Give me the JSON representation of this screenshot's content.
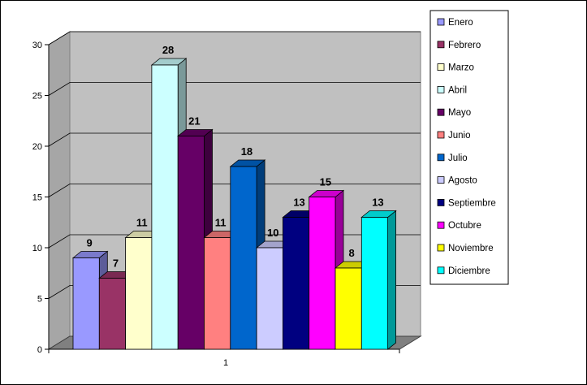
{
  "chart_data": {
    "type": "bar",
    "style": "3d-clustered-column",
    "title": "",
    "xlabel": "",
    "ylabel": "",
    "categories": [
      "1"
    ],
    "ylim": [
      0,
      30
    ],
    "yticks": [
      0,
      5,
      10,
      15,
      20,
      25,
      30
    ],
    "grid": true,
    "legend_position": "right",
    "data_labels": true,
    "series": [
      {
        "name": "Enero",
        "values": [
          9
        ],
        "color": "#9999FF"
      },
      {
        "name": "Febrero",
        "values": [
          7
        ],
        "color": "#993366"
      },
      {
        "name": "Marzo",
        "values": [
          11
        ],
        "color": "#FFFFCC"
      },
      {
        "name": "Abril",
        "values": [
          28
        ],
        "color": "#CCFFFF"
      },
      {
        "name": "Mayo",
        "values": [
          21
        ],
        "color": "#660066"
      },
      {
        "name": "Junio",
        "values": [
          11
        ],
        "color": "#FF8080"
      },
      {
        "name": "Julio",
        "values": [
          18
        ],
        "color": "#0066CC"
      },
      {
        "name": "Agosto",
        "values": [
          10
        ],
        "color": "#CCCCFF"
      },
      {
        "name": "Septiembre",
        "values": [
          13
        ],
        "color": "#000080"
      },
      {
        "name": "Octubre",
        "values": [
          15
        ],
        "color": "#FF00FF"
      },
      {
        "name": "Noviembre",
        "values": [
          8
        ],
        "color": "#FFFF00"
      },
      {
        "name": "Diciembre",
        "values": [
          13
        ],
        "color": "#00FFFF"
      }
    ],
    "wall_color": "#C0C0C0"
  }
}
